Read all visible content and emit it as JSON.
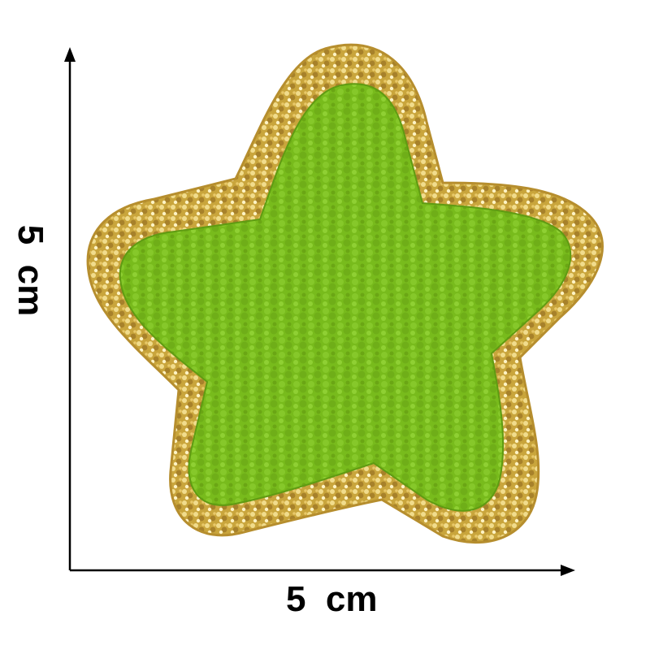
{
  "dimensions": {
    "width_label": "5  cm",
    "height_label": "5  cm",
    "width_cm": 5,
    "height_cm": 5
  },
  "product": {
    "shape": "star",
    "fill_color": "#7cbf1e",
    "fill_texture": "chenille",
    "border_color": "#d4b24a",
    "border_texture": "gold-glitter-sequin"
  },
  "colors": {
    "background": "#ffffff",
    "axis": "#000000"
  }
}
